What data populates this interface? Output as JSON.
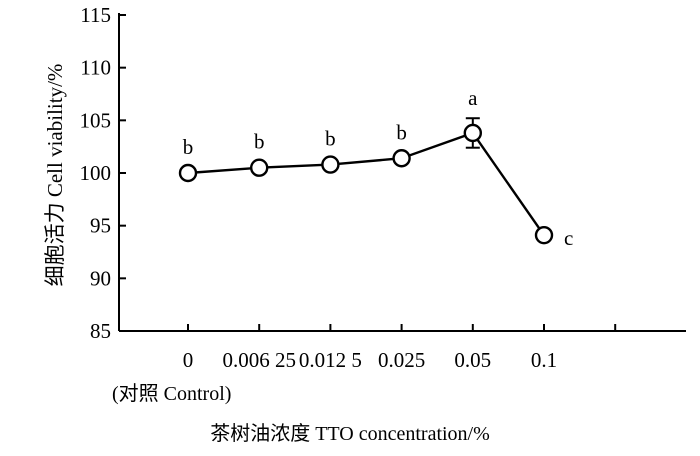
{
  "chart_data": {
    "type": "line",
    "x": [
      "0",
      "0.006 25",
      "0.012 5",
      "0.025",
      "0.05",
      "0.1"
    ],
    "control_note": "(对照 Control)",
    "series": [
      {
        "values": [
          100.0,
          100.5,
          100.8,
          101.4,
          103.8,
          94.1
        ],
        "error": [
          0,
          0,
          0,
          0,
          1.4,
          0
        ],
        "labels": [
          "b",
          "b",
          "b",
          "b",
          "a",
          "c"
        ]
      }
    ],
    "xlabel": "茶树油浓度 TTO concentration/%",
    "ylabel": "细胞活力 Cell viability/%",
    "ylim": [
      85,
      115
    ],
    "yticks": [
      85,
      90,
      95,
      100,
      105,
      110,
      115
    ],
    "grid": false,
    "marker": "open-circle",
    "color": "#000000"
  }
}
